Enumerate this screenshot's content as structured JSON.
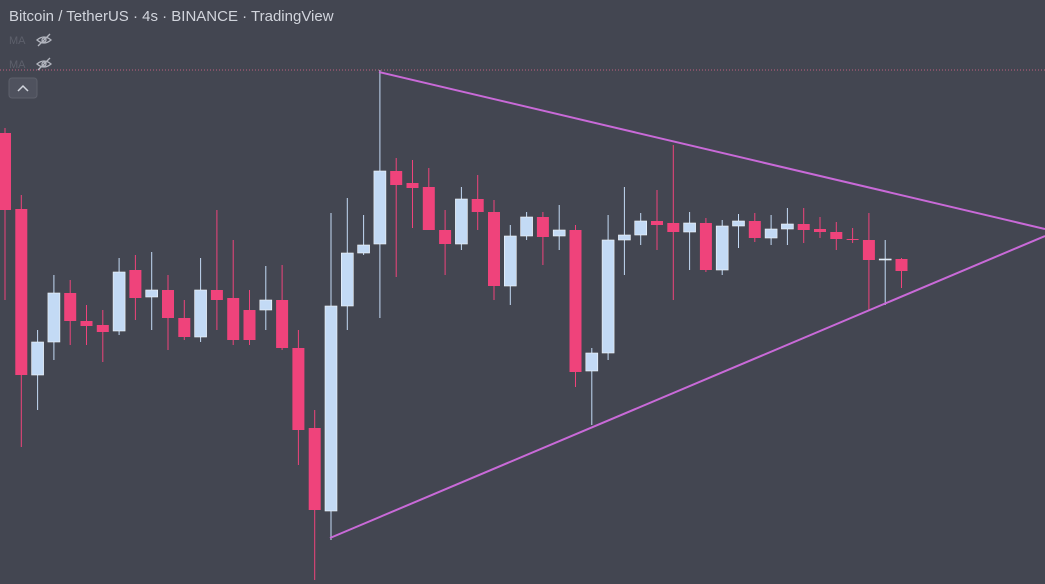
{
  "chart_data": {
    "type": "candlestick",
    "title": "Bitcoin / TetherUS · 4s · BINANCE · TradingView",
    "open": [
      451,
      375,
      209,
      242,
      291,
      263,
      259,
      253,
      314,
      287,
      294,
      266,
      247,
      294,
      286,
      274,
      274,
      284,
      236,
      156,
      73,
      278,
      331,
      340,
      413,
      401,
      397,
      354,
      340,
      385,
      372,
      298,
      348,
      367,
      348,
      354,
      213,
      231,
      344,
      349,
      363,
      361,
      352,
      361,
      314,
      358,
      363,
      346,
      355,
      360,
      355,
      352,
      345,
      344,
      324,
      325
    ],
    "high": [
      456,
      389,
      254,
      309,
      304,
      279,
      274,
      326,
      329,
      332,
      309,
      284,
      326,
      374,
      344,
      294,
      318,
      319,
      254,
      174,
      371,
      386,
      369,
      514,
      426,
      424,
      416,
      374,
      397,
      409,
      384,
      359,
      372,
      372,
      379,
      359,
      236,
      369,
      397,
      371,
      394,
      439,
      372,
      366,
      364,
      370,
      371,
      369,
      376,
      376,
      367,
      362,
      356,
      371,
      344,
      326
    ],
    "low": [
      284,
      137,
      174,
      224,
      239,
      239,
      222,
      249,
      264,
      254,
      234,
      244,
      242,
      254,
      239,
      239,
      254,
      234,
      119,
      4,
      44,
      254,
      329,
      266,
      307,
      356,
      354,
      309,
      334,
      354,
      284,
      279,
      344,
      319,
      334,
      197,
      159,
      224,
      309,
      339,
      334,
      284,
      314,
      312,
      309,
      336,
      342,
      339,
      339,
      341,
      346,
      334,
      341,
      274,
      279,
      296
    ],
    "close": [
      374,
      209,
      242,
      291,
      263,
      258,
      252,
      312,
      286,
      294,
      266,
      247,
      294,
      284,
      244,
      244,
      284,
      236,
      154,
      74,
      278,
      331,
      339,
      413,
      399,
      396,
      354,
      340,
      385,
      372,
      298,
      348,
      367,
      347,
      354,
      212,
      231,
      344,
      349,
      363,
      359,
      352,
      361,
      314,
      358,
      363,
      346,
      355,
      360,
      354,
      352,
      345,
      344,
      324,
      325,
      313
    ],
    "up_color": "#c3daf5",
    "down_color": "#ef437b",
    "ylim": [
      0,
      584
    ]
  },
  "indicators": [
    "MA",
    "MA"
  ]
}
